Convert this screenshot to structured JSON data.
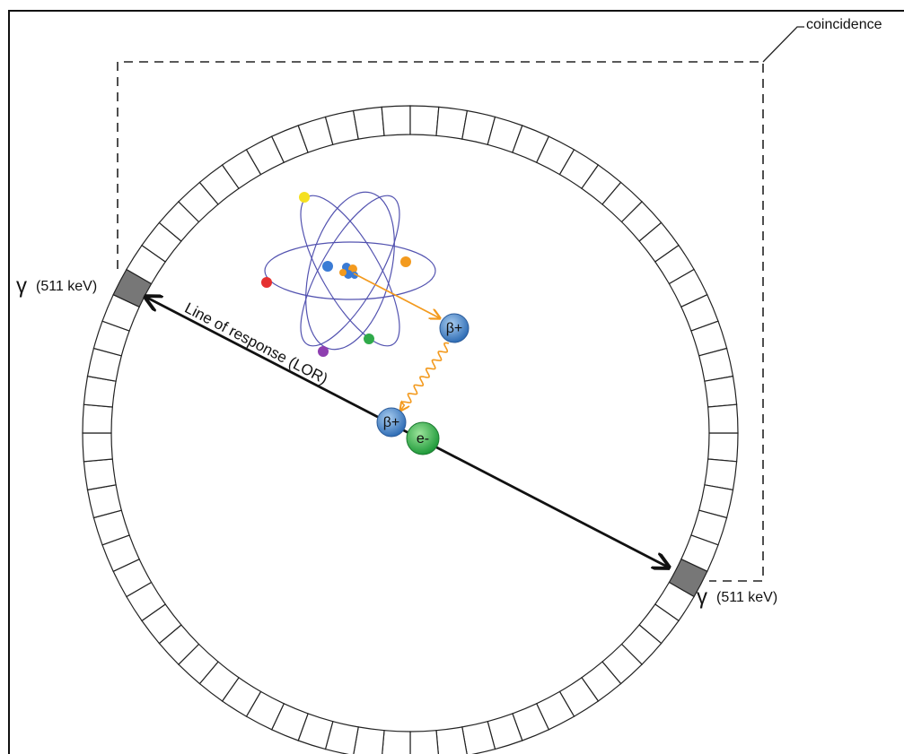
{
  "labels": {
    "coincidence": "coincidence",
    "gamma_left_symbol": "γ",
    "gamma_left_energy": "(511 keV)",
    "gamma_right_symbol": "γ",
    "gamma_right_energy": "(511 keV)",
    "lor": "Line of response (LOR)",
    "positron_emitted": "β+",
    "positron_annihilating": "β+",
    "electron": "e-"
  }
}
